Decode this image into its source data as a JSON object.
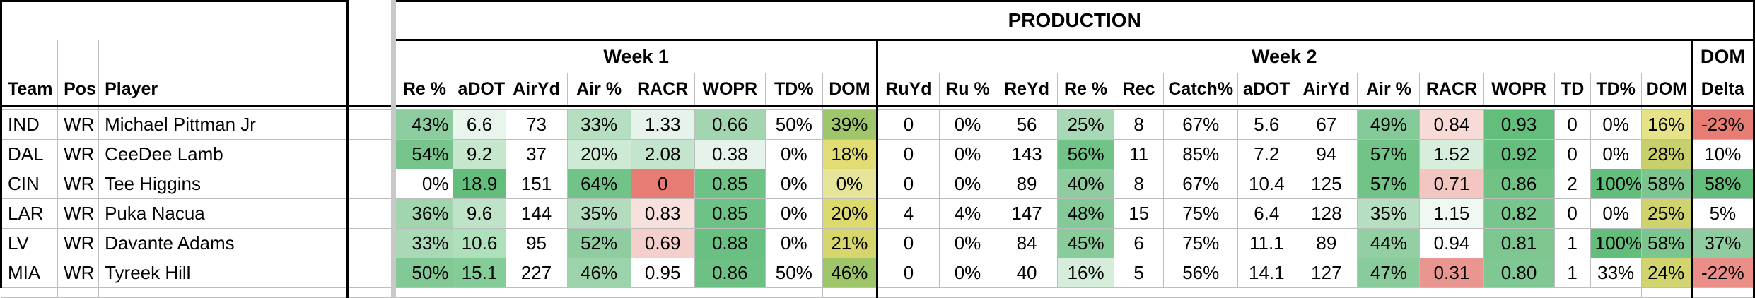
{
  "section_title": "PRODUCTION",
  "week1_label": "Week 1",
  "week2_label": "Week 2",
  "dom_label": "DOM",
  "headers": {
    "ident": [
      "Team",
      "Pos",
      "Player"
    ],
    "week1": [
      "Re %",
      "aDOT",
      "AirYd",
      "Air %",
      "RACR",
      "WOPR",
      "TD%",
      "DOM"
    ],
    "week2": [
      "RuYd",
      "Ru %",
      "ReYd",
      "Re %",
      "Rec",
      "Catch%",
      "aDOT",
      "AirYd",
      "Air %",
      "RACR",
      "WOPR",
      "TD",
      "TD%",
      "DOM"
    ],
    "delta": "Delta"
  },
  "colors": {
    "green_dark": "#63be7b",
    "green_mid": "#9fd4ac",
    "green_light": "#d4ecd9",
    "red": "#e67c73",
    "red_light": "#f6d3d0",
    "yellow": "#c9cf5b",
    "yellow_light": "#e6e59a"
  },
  "rows": [
    {
      "team": "IND",
      "pos": "WR",
      "player": "Michael Pittman Jr",
      "w1": [
        "43%",
        "6.6",
        "73",
        "33%",
        "1.33",
        "0.66",
        "50%",
        "39%"
      ],
      "w1_bg": [
        "#8dcc9e",
        "#e8f5ec",
        "#ffffff",
        "#b6dec1",
        "#e6f3ea",
        "#a2d5b0",
        "#ffffff",
        "#9fc66a"
      ],
      "w2": [
        "0",
        "0%",
        "56",
        "25%",
        "8",
        "67%",
        "5.6",
        "67",
        "49%",
        "0.84",
        "0.93",
        "0",
        "0%",
        "16%"
      ],
      "w2_bg": [
        "#ffffff",
        "#ffffff",
        "#ffffff",
        "#a8d8b5",
        "#ffffff",
        "#ffffff",
        "#ffffff",
        "#ffffff",
        "#84c998",
        "#f8dad7",
        "#63be7b",
        "#ffffff",
        "#ffffff",
        "#e6e288"
      ],
      "delta": "-23%",
      "delta_bg": "#e67c73"
    },
    {
      "team": "DAL",
      "pos": "WR",
      "player": "CeeDee Lamb",
      "w1": [
        "54%",
        "9.2",
        "37",
        "20%",
        "2.08",
        "0.38",
        "0%",
        "18%"
      ],
      "w1_bg": [
        "#77c48c",
        "#c6e6ce",
        "#ffffff",
        "#cdeAd4",
        "#c4e5cd",
        "#e6f3ea",
        "#ffffff",
        "#e1dc73"
      ],
      "w2": [
        "0",
        "0%",
        "143",
        "56%",
        "11",
        "85%",
        "7.2",
        "94",
        "57%",
        "1.52",
        "0.92",
        "0",
        "0%",
        "28%"
      ],
      "w2_bg": [
        "#ffffff",
        "#ffffff",
        "#ffffff",
        "#72c387",
        "#ffffff",
        "#ffffff",
        "#ffffff",
        "#ffffff",
        "#72c387",
        "#d8eedd",
        "#66bf7e",
        "#ffffff",
        "#ffffff",
        "#c7d06a"
      ],
      "delta": "10%",
      "delta_bg": "#ffffff"
    },
    {
      "team": "CIN",
      "pos": "WR",
      "player": "Tee Higgins",
      "w1": [
        "0%",
        "18.9",
        "151",
        "64%",
        "0",
        "0.85",
        "0%",
        "0%"
      ],
      "w1_bg": [
        "#ffffff",
        "#63be7b",
        "#ffffff",
        "#72c387",
        "#e67c73",
        "#6fc285",
        "#ffffff",
        "#e6e59a"
      ],
      "w2": [
        "0",
        "0%",
        "89",
        "40%",
        "8",
        "67%",
        "10.4",
        "125",
        "57%",
        "0.71",
        "0.86",
        "2",
        "100%",
        "58%"
      ],
      "w2_bg": [
        "#ffffff",
        "#ffffff",
        "#ffffff",
        "#8fcda0",
        "#ffffff",
        "#ffffff",
        "#ffffff",
        "#ffffff",
        "#72c387",
        "#f4c6c2",
        "#70c285",
        "#ffffff",
        "#63be7b",
        "#7dc58f"
      ],
      "delta": "58%",
      "delta_bg": "#63be7b"
    },
    {
      "team": "LAR",
      "pos": "WR",
      "player": "Puka Nacua",
      "w1": [
        "36%",
        "9.6",
        "144",
        "35%",
        "0.83",
        "0.85",
        "0%",
        "20%"
      ],
      "w1_bg": [
        "#a0d5ae",
        "#bfe3c8",
        "#ffffff",
        "#b2dcbd",
        "#f8e0dd",
        "#6fc285",
        "#ffffff",
        "#dcd96f"
      ],
      "w2": [
        "4",
        "4%",
        "147",
        "48%",
        "15",
        "75%",
        "6.4",
        "128",
        "35%",
        "1.15",
        "0.82",
        "0",
        "0%",
        "25%"
      ],
      "w2_bg": [
        "#ffffff",
        "#ffffff",
        "#ffffff",
        "#84c998",
        "#ffffff",
        "#ffffff",
        "#ffffff",
        "#ffffff",
        "#b6dec1",
        "#f0f8f2",
        "#79c58e",
        "#ffffff",
        "#ffffff",
        "#cfd36e"
      ],
      "delta": "5%",
      "delta_bg": "#ffffff"
    },
    {
      "team": "LV",
      "pos": "WR",
      "player": "Davante Adams",
      "w1": [
        "33%",
        "10.6",
        "95",
        "52%",
        "0.69",
        "0.88",
        "0%",
        "21%"
      ],
      "w1_bg": [
        "#a9d9b6",
        "#ade0bb",
        "#ffffff",
        "#8fcda0",
        "#f4cfcb",
        "#6ac082",
        "#ffffff",
        "#d6d66c"
      ],
      "w2": [
        "0",
        "0%",
        "84",
        "45%",
        "6",
        "75%",
        "11.1",
        "89",
        "44%",
        "0.94",
        "0.81",
        "1",
        "100%",
        "58%"
      ],
      "w2_bg": [
        "#ffffff",
        "#ffffff",
        "#ffffff",
        "#89cb9b",
        "#ffffff",
        "#ffffff",
        "#ffffff",
        "#ffffff",
        "#94cfa4",
        "#ffffff",
        "#7dc690",
        "#ffffff",
        "#63be7b",
        "#7dc58f"
      ],
      "delta": "37%",
      "delta_bg": "#8fcda0"
    },
    {
      "team": "MIA",
      "pos": "WR",
      "player": "Tyreek Hill",
      "w1": [
        "50%",
        "15.1",
        "227",
        "46%",
        "0.95",
        "0.86",
        "50%",
        "46%"
      ],
      "w1_bg": [
        "#83c996",
        "#84cc98",
        "#ffffff",
        "#9cd3aa",
        "#ffffff",
        "#6dc184",
        "#ffffff",
        "#9ec669"
      ],
      "w2": [
        "0",
        "0%",
        "40",
        "16%",
        "5",
        "56%",
        "14.1",
        "127",
        "47%",
        "0.31",
        "0.80",
        "1",
        "33%",
        "24%"
      ],
      "w2_bg": [
        "#ffffff",
        "#ffffff",
        "#ffffff",
        "#d6eddc",
        "#ffffff",
        "#ffffff",
        "#ffffff",
        "#ffffff",
        "#8acb9c",
        "#e99690",
        "#80c893",
        "#ffffff",
        "#ffffff",
        "#d2d46f"
      ],
      "delta": "-22%",
      "delta_bg": "#ea8e87"
    }
  ]
}
